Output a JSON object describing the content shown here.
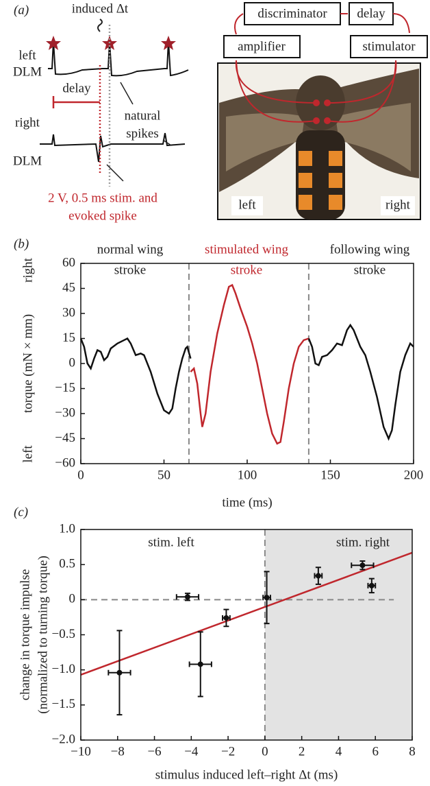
{
  "panel_a": {
    "label": "(a)",
    "induced": "induced Δt",
    "left_dlm": [
      "left",
      "DLM"
    ],
    "right_dlm": [
      "right",
      "DLM"
    ],
    "delay": "delay",
    "natural_spikes": [
      "natural",
      "spikes"
    ],
    "stim_note": [
      "2 V, 0.5 ms stim. and",
      "evoked spike"
    ],
    "boxes": [
      "discriminator",
      "delay",
      "amplifier",
      "stimulator"
    ],
    "photo_left": "left",
    "photo_right": "right"
  },
  "chart_data": [
    {
      "type": "line",
      "panel": "(b)",
      "ylabel": "torque (mN × mm)",
      "ylabel_top": "right",
      "ylabel_bottom": "left",
      "xlabel": "time (ms)",
      "annotations": [
        {
          "text": [
            "normal wing",
            "stroke"
          ],
          "color": "#222222"
        },
        {
          "text": [
            "stimulated wing",
            "stroke"
          ],
          "color": "#c0272d"
        },
        {
          "text": [
            "following wing",
            "stroke"
          ],
          "color": "#222222"
        }
      ],
      "xlim": [
        0,
        200
      ],
      "xticks": [
        0,
        50,
        100,
        150,
        200
      ],
      "ylim": [
        -60,
        60
      ],
      "yticks": [
        {
          "value": -60,
          "label": "−60"
        },
        {
          "value": -45,
          "label": "−45"
        },
        {
          "value": -30,
          "label": "−30"
        },
        {
          "value": -15,
          "label": "−15"
        },
        0,
        15,
        30,
        45,
        60
      ],
      "vlines": [
        65,
        137
      ],
      "series": [
        {
          "color": "#111111",
          "x": [
            0,
            2,
            4,
            6,
            8,
            10,
            12,
            14,
            16,
            18,
            22,
            26,
            28,
            30,
            33,
            36,
            38,
            42,
            46,
            50,
            53,
            55,
            57,
            59,
            61,
            63,
            64,
            66
          ],
          "values": [
            15,
            10,
            0,
            -3,
            3,
            8,
            7,
            2,
            4,
            9,
            12,
            14,
            15,
            12,
            5,
            6,
            5,
            -5,
            -18,
            -28,
            -30,
            -27,
            -15,
            -5,
            3,
            9,
            10,
            3
          ]
        },
        {
          "color": "#c0272d",
          "x": [
            66,
            68,
            70,
            72,
            73,
            75,
            78,
            82,
            86,
            89,
            91,
            93,
            96,
            100,
            103,
            106,
            109,
            112,
            115,
            118,
            120,
            122,
            125,
            128,
            131,
            134,
            137
          ],
          "values": [
            -5,
            -3,
            -12,
            -30,
            -38,
            -30,
            -5,
            18,
            35,
            46,
            47,
            42,
            33,
            22,
            12,
            0,
            -15,
            -30,
            -42,
            -48,
            -47,
            -35,
            -15,
            0,
            10,
            14,
            15
          ]
        },
        {
          "color": "#111111",
          "x": [
            137,
            139,
            141,
            143,
            145,
            148,
            151,
            154,
            157,
            160,
            162,
            164,
            166,
            168,
            171,
            174,
            178,
            182,
            185,
            187,
            189,
            192,
            195,
            198,
            200
          ],
          "values": [
            15,
            10,
            0,
            -1,
            4,
            5,
            8,
            12,
            11,
            20,
            23,
            20,
            15,
            10,
            5,
            -5,
            -20,
            -38,
            -45,
            -40,
            -25,
            -5,
            5,
            12,
            10
          ]
        }
      ]
    },
    {
      "type": "scatter",
      "panel": "(c)",
      "ylabel": [
        "change in torque impulse",
        "(normalized to turning torque)"
      ],
      "xlabel": "stimulus induced left–right Δt (ms)",
      "annotations": [
        "stim. left",
        "stim. right"
      ],
      "xlim": [
        -10,
        8
      ],
      "xticks": [
        {
          "value": -10,
          "label": "−10"
        },
        {
          "value": -8,
          "label": "−8"
        },
        {
          "value": -6,
          "label": "−6"
        },
        {
          "value": -4,
          "label": "−4"
        },
        {
          "value": -2,
          "label": "−2"
        },
        0,
        2,
        4,
        6,
        8
      ],
      "ylim": [
        -2,
        1
      ],
      "yticks": [
        {
          "value": -2,
          "label": "−2.0"
        },
        {
          "value": -1.5,
          "label": "−1.5"
        },
        {
          "value": -1,
          "label": "−1.0"
        },
        {
          "value": -0.5,
          "label": "−0.5"
        },
        0,
        0.5,
        {
          "value": 1,
          "label": "1.0"
        }
      ],
      "shade": [
        0,
        8
      ],
      "shade_color": "#e3e3e3",
      "reference_lines": [
        {
          "axis": "y",
          "value": 0,
          "from": -10,
          "to": 7
        },
        {
          "axis": "x",
          "value": 0
        }
      ],
      "color": "#111111",
      "x": [
        -7.9,
        -4.2,
        -3.5,
        -2.1,
        0.1,
        2.9,
        5.3,
        5.8
      ],
      "values": [
        -1.04,
        0.04,
        -0.92,
        -0.26,
        0.03,
        0.34,
        0.49,
        0.2
      ],
      "xerr": [
        0.6,
        0.6,
        0.6,
        0.2,
        0.2,
        0.2,
        0.6,
        0.2
      ],
      "yerr": [
        0.6,
        0.05,
        0.46,
        0.12,
        0.37,
        0.12,
        0.06,
        0.1
      ],
      "fit": {
        "color": "#c0272d",
        "x": [
          -10,
          8
        ],
        "values": [
          -1.07,
          0.67
        ]
      }
    }
  ]
}
